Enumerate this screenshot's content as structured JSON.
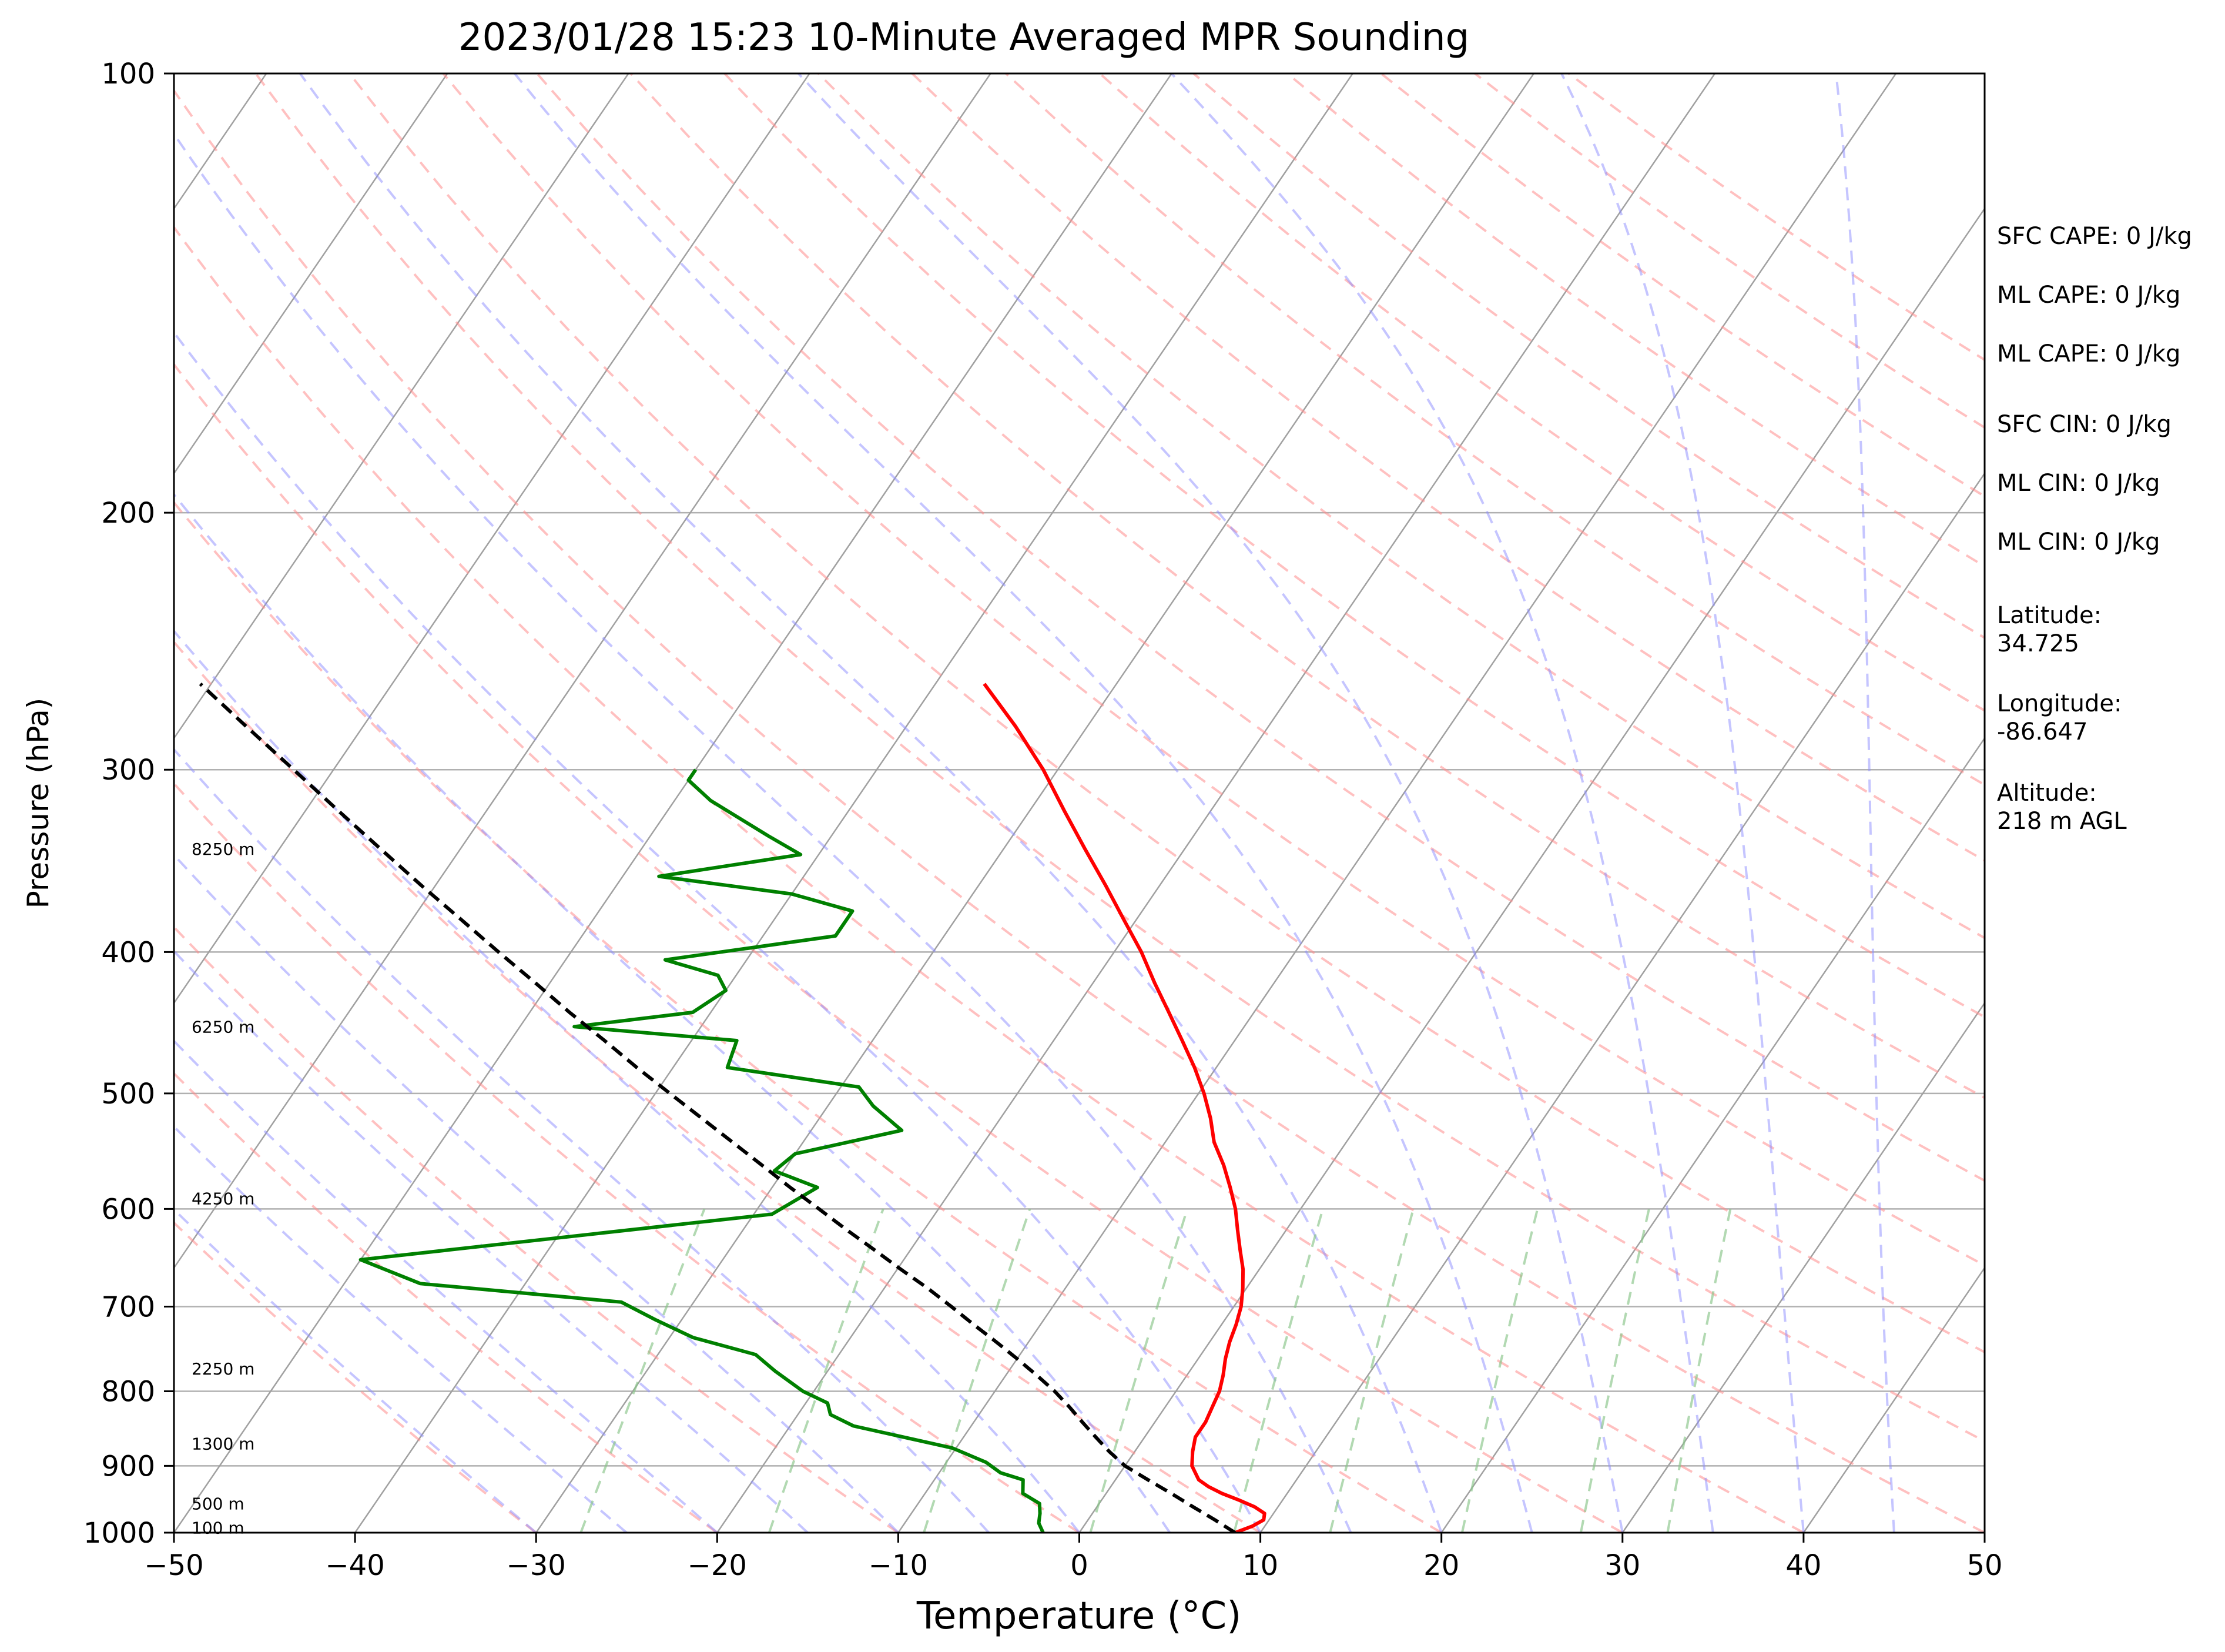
{
  "chart_data": {
    "type": "line",
    "title": "2023/01/28 15:23 10-Minute Averaged MPR Sounding",
    "xlabel": "Temperature (°C)",
    "ylabel": "Pressure (hPa)",
    "xlim": [
      -50,
      50
    ],
    "ylim": [
      1000,
      100
    ],
    "y_scale": "log",
    "skew": "skew-T",
    "x_ticks": [
      -50,
      -40,
      -30,
      -20,
      -10,
      0,
      10,
      20,
      30,
      40,
      50
    ],
    "x_tick_labels": [
      "−50",
      "−40",
      "−30",
      "−20",
      "−10",
      "0",
      "10",
      "20",
      "30",
      "40",
      "50"
    ],
    "y_ticks": [
      100,
      200,
      300,
      400,
      500,
      600,
      700,
      800,
      900,
      1000
    ],
    "y_tick_labels": [
      "100",
      "200",
      "300",
      "400",
      "500",
      "600",
      "700",
      "800",
      "900",
      "1000"
    ],
    "grid": true,
    "colors": {
      "temperature": "#ff0000",
      "dewpoint": "#008000",
      "parcel": "#000000",
      "isotherm": "#a0a0a0",
      "dry_adiabat": "#ff8c8c",
      "moist_adiabat": "#8c8cff",
      "mixing_ratio": "#88c488"
    },
    "series": [
      {
        "role": "temperature",
        "points": [
          [
            1000,
            8.6
          ],
          [
            990,
            9.3
          ],
          [
            980,
            9.7
          ],
          [
            970,
            9.5
          ],
          [
            960,
            8.7
          ],
          [
            950,
            7.6
          ],
          [
            940,
            6.4
          ],
          [
            930,
            5.4
          ],
          [
            920,
            4.6
          ],
          [
            900,
            3.7
          ],
          [
            880,
            3.2
          ],
          [
            860,
            2.8
          ],
          [
            840,
            2.8
          ],
          [
            820,
            2.6
          ],
          [
            800,
            2.4
          ],
          [
            780,
            2.0
          ],
          [
            760,
            1.5
          ],
          [
            740,
            1.1
          ],
          [
            720,
            0.8
          ],
          [
            700,
            0.4
          ],
          [
            680,
            -0.2
          ],
          [
            660,
            -0.9
          ],
          [
            640,
            -1.8
          ],
          [
            620,
            -2.7
          ],
          [
            600,
            -3.6
          ],
          [
            580,
            -4.7
          ],
          [
            560,
            -5.9
          ],
          [
            540,
            -7.3
          ],
          [
            520,
            -8.4
          ],
          [
            500,
            -9.7
          ],
          [
            480,
            -11.2
          ],
          [
            460,
            -12.9
          ],
          [
            440,
            -14.7
          ],
          [
            420,
            -16.6
          ],
          [
            400,
            -18.5
          ],
          [
            380,
            -20.7
          ],
          [
            360,
            -23.0
          ],
          [
            340,
            -25.5
          ],
          [
            320,
            -28.1
          ],
          [
            300,
            -30.8
          ],
          [
            280,
            -34.0
          ],
          [
            262,
            -37.3
          ]
        ]
      },
      {
        "role": "dewpoint",
        "points": [
          [
            1000,
            -2.0
          ],
          [
            985,
            -2.6
          ],
          [
            970,
            -2.9
          ],
          [
            955,
            -3.3
          ],
          [
            940,
            -4.6
          ],
          [
            920,
            -5.1
          ],
          [
            910,
            -6.6
          ],
          [
            895,
            -7.8
          ],
          [
            875,
            -10.2
          ],
          [
            845,
            -16.5
          ],
          [
            830,
            -18.2
          ],
          [
            815,
            -18.8
          ],
          [
            800,
            -20.6
          ],
          [
            775,
            -22.9
          ],
          [
            755,
            -24.6
          ],
          [
            735,
            -28.7
          ],
          [
            715,
            -31.4
          ],
          [
            695,
            -34.0
          ],
          [
            675,
            -45.8
          ],
          [
            650,
            -50.0
          ],
          [
            605,
            -29.0
          ],
          [
            580,
            -27.5
          ],
          [
            565,
            -30.5
          ],
          [
            550,
            -30.0
          ],
          [
            530,
            -25.0
          ],
          [
            510,
            -27.5
          ],
          [
            495,
            -29.0
          ],
          [
            480,
            -37.0
          ],
          [
            460,
            -37.5
          ],
          [
            450,
            -47.0
          ],
          [
            440,
            -41.0
          ],
          [
            425,
            -40.0
          ],
          [
            415,
            -41.0
          ],
          [
            405,
            -44.5
          ],
          [
            390,
            -36.0
          ],
          [
            375,
            -36.0
          ],
          [
            365,
            -40.0
          ],
          [
            355,
            -48.0
          ],
          [
            343,
            -41.0
          ],
          [
            333,
            -43.5
          ],
          [
            315,
            -48.0
          ],
          [
            305,
            -50.0
          ],
          [
            300,
            -50.0
          ]
        ]
      },
      {
        "role": "parcel",
        "points": [
          [
            1000,
            8.6
          ],
          [
            980,
            7.0
          ],
          [
            960,
            5.3
          ],
          [
            940,
            3.6
          ],
          [
            920,
            1.8
          ],
          [
            900,
            0.0
          ],
          [
            880,
            -1.4
          ],
          [
            860,
            -2.7
          ],
          [
            840,
            -4.0
          ],
          [
            820,
            -5.3
          ],
          [
            800,
            -6.7
          ],
          [
            780,
            -8.3
          ],
          [
            760,
            -10.0
          ],
          [
            740,
            -11.8
          ],
          [
            720,
            -13.7
          ],
          [
            700,
            -15.6
          ],
          [
            680,
            -17.6
          ],
          [
            660,
            -19.8
          ],
          [
            640,
            -22.0
          ],
          [
            620,
            -24.3
          ],
          [
            600,
            -26.6
          ],
          [
            580,
            -29.0
          ],
          [
            560,
            -31.4
          ],
          [
            540,
            -33.9
          ],
          [
            520,
            -36.5
          ],
          [
            500,
            -39.2
          ],
          [
            480,
            -42.0
          ],
          [
            460,
            -44.8
          ],
          [
            440,
            -47.8
          ],
          [
            420,
            -50.8
          ],
          [
            400,
            -54.0
          ],
          [
            380,
            -57.3
          ],
          [
            360,
            -60.8
          ],
          [
            340,
            -64.4
          ],
          [
            320,
            -68.2
          ],
          [
            300,
            -72.2
          ],
          [
            280,
            -76.5
          ],
          [
            262,
            -80.6
          ]
        ]
      }
    ],
    "height_labels": [
      {
        "pressure": 340,
        "text": "8250 m"
      },
      {
        "pressure": 450,
        "text": "6250 m"
      },
      {
        "pressure": 590,
        "text": "4250 m"
      },
      {
        "pressure": 772,
        "text": "2250 m"
      },
      {
        "pressure": 869,
        "text": "1300 m"
      },
      {
        "pressure": 955,
        "text": "500 m"
      },
      {
        "pressure": 992,
        "text": "100 m"
      }
    ],
    "annotations": [
      {
        "text": "SFC CAPE: 0 J/kg"
      },
      {
        "text": "ML CAPE: 0 J/kg"
      },
      {
        "text": "ML CAPE: 0 J/kg"
      },
      {
        "text": "SFC CIN: 0 J/kg"
      },
      {
        "text": "ML CIN: 0 J/kg"
      },
      {
        "text": "ML CIN: 0 J/kg"
      },
      {
        "text": "Latitude:\n34.725"
      },
      {
        "text": "Longitude:\n-86.647"
      },
      {
        "text": "Altitude:\n218 m AGL"
      }
    ]
  }
}
